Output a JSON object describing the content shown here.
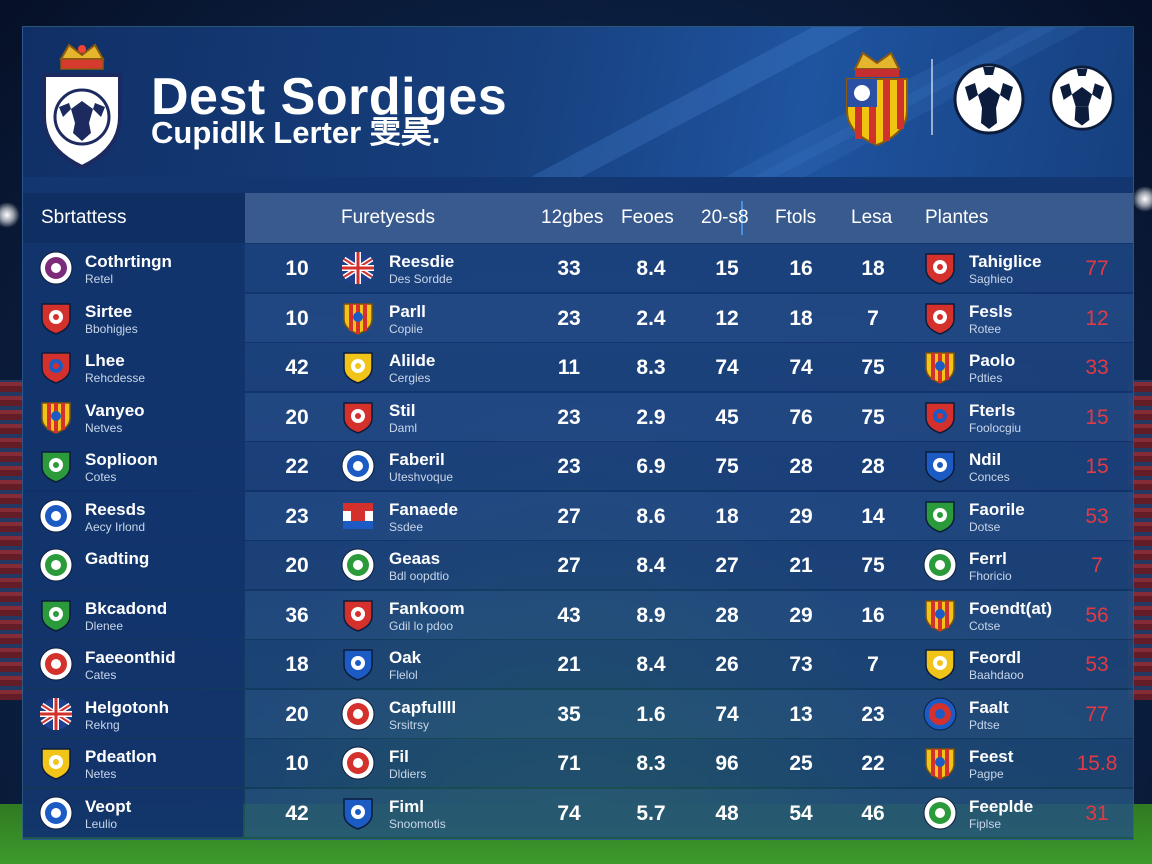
{
  "header": {
    "title": "Dest Sordiges",
    "subtitle": "Cupidlk Lerter 雯昊."
  },
  "columns": {
    "left": "Sbrtattess",
    "team": "Furetyesds",
    "c1": "12gbes",
    "c2": "Feoes",
    "c3": "20-s8",
    "c4": "Ftols",
    "c5": "Lesa",
    "right": "Plantes"
  },
  "colors": {
    "accent_red": "#e23a44",
    "board_blue": "#17407e"
  },
  "rows": [
    {
      "left_name": "Cothrtingn",
      "left_sub": "Retel",
      "left_icon": "purple-ring-badge",
      "rank": "10",
      "team_name": "Reesdie",
      "team_sub": "Des Sordde",
      "team_icon": "union-jack-flag-icon",
      "c1": "33",
      "c2": "8.4",
      "c3": "15",
      "c4": "16",
      "c5": "18",
      "right_name": "Tahiglice",
      "right_sub": "Saghieo",
      "right_icon": "red-white-shield-icon",
      "right_val": "77"
    },
    {
      "left_name": "Sirtee",
      "left_sub": "Bbohigjes",
      "left_icon": "red-shield-badge",
      "rank": "10",
      "team_name": "Parll",
      "team_sub": "Copiie",
      "team_icon": "red-yellow-striped-shield-icon",
      "c1": "23",
      "c2": "2.4",
      "c3": "12",
      "c4": "18",
      "c5": "7",
      "right_name": "Fesls",
      "right_sub": "Rotee",
      "right_icon": "white-red-crest-icon",
      "right_val": "12"
    },
    {
      "left_name": "Lhee",
      "left_sub": "Rehcdesse",
      "left_icon": "red-blue-shield-badge",
      "rank": "42",
      "team_name": "Alilde",
      "team_sub": "Cergies",
      "team_icon": "yellow-crest-icon",
      "c1": "11",
      "c2": "8.3",
      "c3": "74",
      "c4": "74",
      "c5": "75",
      "right_name": "Paolo",
      "right_sub": "Pdties",
      "right_icon": "red-yellow-striped-shield-icon",
      "right_val": "33"
    },
    {
      "left_name": "Vanyeo",
      "left_sub": "Netves",
      "left_icon": "red-yellow-striped-badge",
      "rank": "20",
      "team_name": "Stil",
      "team_sub": "Daml",
      "team_icon": "red-crest-icon",
      "c1": "23",
      "c2": "2.9",
      "c3": "45",
      "c4": "76",
      "c5": "75",
      "right_name": "Fterls",
      "right_sub": "Foolocgiu",
      "right_icon": "red-blue-round-crest-icon",
      "right_val": "15"
    },
    {
      "left_name": "Soplioon",
      "left_sub": "Cotes",
      "left_icon": "green-shield-badge",
      "rank": "22",
      "team_name": "Faberil",
      "team_sub": "Uteshvoque",
      "team_icon": "white-blue-roundel-icon",
      "c1": "23",
      "c2": "6.9",
      "c3": "75",
      "c4": "28",
      "c5": "28",
      "right_name": "Ndil",
      "right_sub": "Conces",
      "right_icon": "white-blue-shield-icon",
      "right_val": "15"
    },
    {
      "left_name": "Reesds",
      "left_sub": "Aecy Irlond",
      "left_icon": "blue-roundel-badge",
      "rank": "23",
      "team_name": "Fanaede",
      "team_sub": "Ssdee",
      "team_icon": "blue-red-stripe-icon",
      "c1": "27",
      "c2": "8.6",
      "c3": "18",
      "c4": "29",
      "c5": "14",
      "right_name": "Faorile",
      "right_sub": "Dotse",
      "right_icon": "green-shield-icon",
      "right_val": "53"
    },
    {
      "left_name": "Gadting",
      "left_sub": "",
      "left_icon": "green-roundel-badge",
      "rank": "20",
      "team_name": "Geaas",
      "team_sub": "Bdl oopdtio",
      "team_icon": "green-roundel-icon",
      "c1": "27",
      "c2": "8.4",
      "c3": "27",
      "c4": "21",
      "c5": "75",
      "right_name": "Ferrl",
      "right_sub": "Fhoricio",
      "right_icon": "green-roundel-icon",
      "right_val": "7"
    },
    {
      "left_name": "Bkcadond",
      "left_sub": "Dlenee",
      "left_icon": "orange-white-green-badge",
      "rank": "36",
      "team_name": "Fankoom",
      "team_sub": "Gdil lo pdoo",
      "team_icon": "blue-red-white-icon",
      "c1": "43",
      "c2": "8.9",
      "c3": "28",
      "c4": "29",
      "c5": "16",
      "right_name": "Foendt(at)",
      "right_sub": "Cotse",
      "right_icon": "red-yellow-striped-shield-icon",
      "right_val": "56"
    },
    {
      "left_name": "Faeeonthid",
      "left_sub": "Cates",
      "left_icon": "red-white-roundel-badge",
      "rank": "18",
      "team_name": "Oak",
      "team_sub": "Flelol",
      "team_icon": "white-blue-shield-icon",
      "c1": "21",
      "c2": "8.4",
      "c3": "26",
      "c4": "73",
      "c5": "7",
      "right_name": "Feordl",
      "right_sub": "Baahdaoo",
      "right_icon": "yellow-red-crest-icon",
      "right_val": "53"
    },
    {
      "left_name": "Helgotonh",
      "left_sub": "Rekng",
      "left_icon": "union-jack-badge",
      "rank": "20",
      "team_name": "Capfullll",
      "team_sub": "Srsitrsy",
      "team_icon": "red-white-blue-roundel-icon",
      "c1": "35",
      "c2": "1.6",
      "c3": "74",
      "c4": "13",
      "c5": "23",
      "right_name": "Faalt",
      "right_sub": "Pdtse",
      "right_icon": "red-blue-stripe-ball-icon",
      "right_val": "77"
    },
    {
      "left_name": "Pdeatlon",
      "left_sub": "Netes",
      "left_icon": "yellow-crest-badge",
      "rank": "10",
      "team_name": "Fil",
      "team_sub": "Dldiers",
      "team_icon": "red-roundel-icon",
      "c1": "71",
      "c2": "8.3",
      "c3": "96",
      "c4": "25",
      "c5": "22",
      "right_name": "Feest",
      "right_sub": "Pagpe",
      "right_icon": "red-yellow-striped-shield-icon",
      "right_val": "15.8"
    },
    {
      "left_name": "Veopt",
      "left_sub": "Leulio",
      "left_icon": "blue-roundel-badge",
      "rank": "42",
      "team_name": "Fiml",
      "team_sub": "Snoomotis",
      "team_icon": "blue-white-shield-icon",
      "c1": "74",
      "c2": "5.7",
      "c3": "48",
      "c4": "54",
      "c5": "46",
      "right_name": "Feeplde",
      "right_sub": "Fiplse",
      "right_icon": "green-white-roundel-icon",
      "right_val": "31"
    }
  ]
}
